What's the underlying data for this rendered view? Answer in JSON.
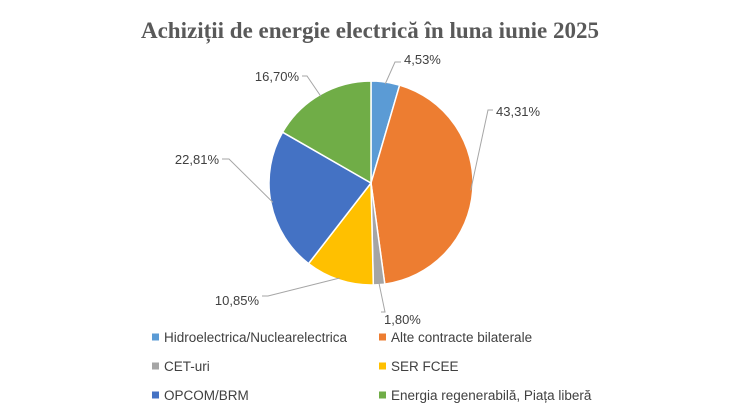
{
  "chart_data": {
    "type": "pie",
    "title": "Achiziții de energie electrică în luna iunie 2025",
    "categories": [
      "Hidroelectrica/Nuclearelectrica",
      "Alte contracte bilaterale",
      "CET-uri",
      "SER FCEE",
      "OPCOM/BRM",
      "Energia regenerabilă, Piața liberă"
    ],
    "values": [
      4.53,
      43.31,
      1.8,
      10.85,
      22.81,
      16.7
    ],
    "data_labels": [
      "4,53%",
      "43,31%",
      "1,80%",
      "10,85%",
      "22,81%",
      "16,70%"
    ],
    "colors": [
      "#5B9BD5",
      "#ED7D31",
      "#A5A5A5",
      "#FFC000",
      "#4472C4",
      "#70AD47"
    ],
    "unit": "%",
    "start_angle_deg": 0,
    "direction": "clockwise",
    "legend_position": "bottom"
  }
}
